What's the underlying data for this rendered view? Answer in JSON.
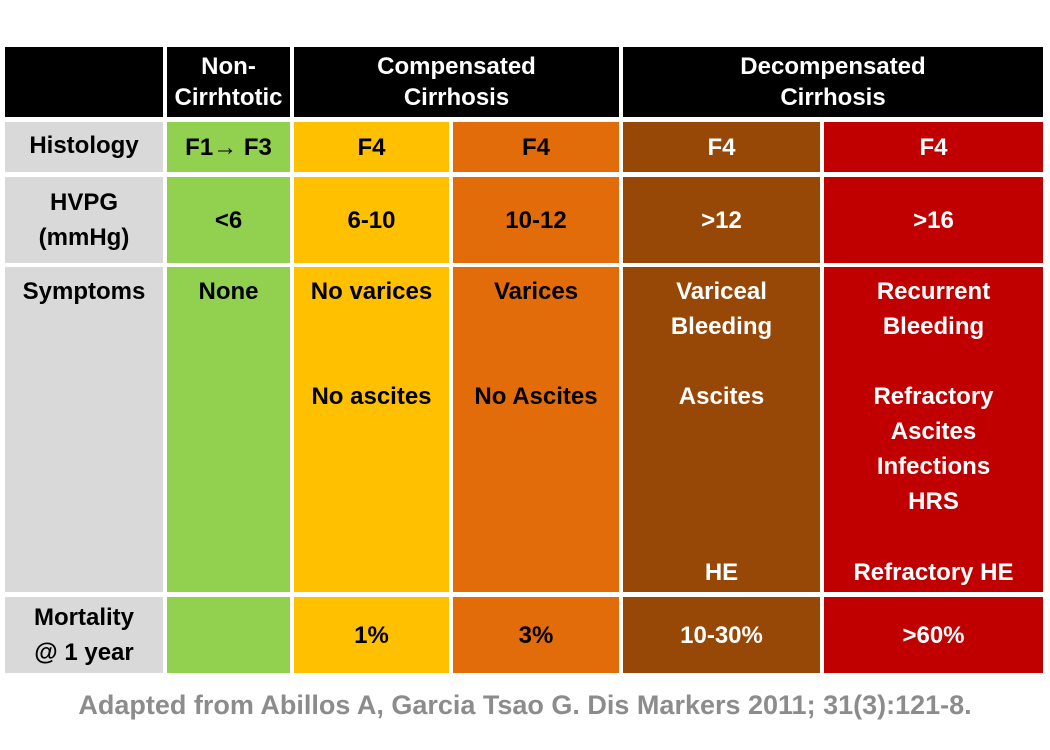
{
  "colors": {
    "header_bg": "#000000",
    "label_bg": "#d9d9d9",
    "non_cirrhotic": "#92d050",
    "compensated_1": "#ffc000",
    "compensated_2": "#e26b0a",
    "decompensated_1": "#974706",
    "decompensated_2": "#c00000"
  },
  "header": {
    "non_cirrhotic": [
      "Non-",
      "Cirrhtotic"
    ],
    "compensated": [
      "Compensated",
      "Cirrhosis"
    ],
    "decompensated": [
      "Decompensated",
      "Cirrhosis"
    ]
  },
  "rows": {
    "histology": {
      "label": [
        "Histology"
      ],
      "values": [
        "F1→ F3",
        "F4",
        "F4",
        "F4",
        "F4"
      ]
    },
    "hvpg": {
      "label": [
        "HVPG",
        "(mmHg)"
      ],
      "values": [
        "<6",
        "6-10",
        "10-12",
        ">12",
        ">16"
      ]
    },
    "symptoms": {
      "label": [
        "Symptoms"
      ],
      "non_cirrhotic": [
        "None"
      ],
      "compensated_1": [
        "No varices",
        "No ascites"
      ],
      "compensated_2": [
        "Varices",
        "No Ascites"
      ],
      "decompensated_1": [
        "Variceal",
        "Bleeding",
        "Ascites",
        "HE"
      ],
      "decompensated_2": [
        "Recurrent",
        "Bleeding",
        "Refractory",
        "Ascites",
        "Infections",
        "HRS",
        "Refractory HE"
      ]
    },
    "mortality": {
      "label": [
        "Mortality",
        "@ 1 year"
      ],
      "values": [
        "",
        "1%",
        "3%",
        "10-30%",
        ">60%"
      ]
    }
  },
  "footer": "Adapted from Abillos A, Garcia Tsao G. Dis Markers 2011; 31(3):121-8."
}
